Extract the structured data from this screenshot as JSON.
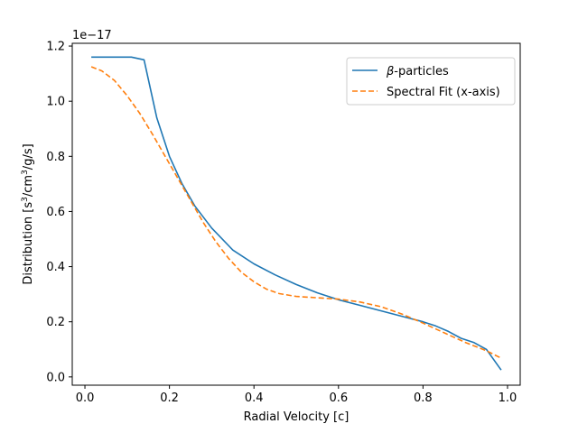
{
  "chart_data": {
    "type": "line",
    "xlabel": "Radial Velocity [c]",
    "ylabel_parts": [
      "Distribution [s",
      "3",
      "/cm",
      "3",
      "/g/s]"
    ],
    "offset_text": "1e−17",
    "xlim": [
      -0.03,
      1.03
    ],
    "ylim": [
      -0.03,
      1.21
    ],
    "xticks": [
      0.0,
      0.2,
      0.4,
      0.6,
      0.8,
      1.0
    ],
    "xtick_labels": [
      "0.0",
      "0.2",
      "0.4",
      "0.6",
      "0.8",
      "1.0"
    ],
    "yticks": [
      0.0,
      0.2,
      0.4,
      0.6,
      0.8,
      1.0,
      1.2
    ],
    "ytick_labels": [
      "0.0",
      "0.2",
      "0.4",
      "0.6",
      "0.8",
      "1.0",
      "1.2"
    ],
    "legend_position": "upper right",
    "series": [
      {
        "name_parts": [
          "β",
          "-particles"
        ],
        "color": "#1f77b4",
        "style": "solid",
        "x": [
          0.015,
          0.04,
          0.08,
          0.11,
          0.14,
          0.17,
          0.2,
          0.23,
          0.26,
          0.3,
          0.35,
          0.4,
          0.45,
          0.5,
          0.55,
          0.6,
          0.65,
          0.7,
          0.75,
          0.8,
          0.83,
          0.86,
          0.89,
          0.92,
          0.95,
          0.985
        ],
        "y": [
          1.16,
          1.16,
          1.16,
          1.16,
          1.15,
          0.94,
          0.8,
          0.7,
          0.62,
          0.54,
          0.46,
          0.41,
          0.37,
          0.335,
          0.305,
          0.28,
          0.26,
          0.24,
          0.22,
          0.2,
          0.185,
          0.165,
          0.14,
          0.125,
          0.1,
          0.025
        ]
      },
      {
        "name_parts": [
          "Spectral Fit (x-axis)"
        ],
        "color": "#ff7f0e",
        "style": "dashed",
        "x": [
          0.015,
          0.04,
          0.07,
          0.1,
          0.13,
          0.16,
          0.19,
          0.22,
          0.25,
          0.28,
          0.31,
          0.34,
          0.37,
          0.4,
          0.43,
          0.46,
          0.5,
          0.55,
          0.6,
          0.65,
          0.7,
          0.75,
          0.8,
          0.85,
          0.9,
          0.95,
          0.985
        ],
        "y": [
          1.125,
          1.11,
          1.075,
          1.02,
          0.955,
          0.88,
          0.8,
          0.72,
          0.64,
          0.56,
          0.49,
          0.43,
          0.38,
          0.345,
          0.318,
          0.302,
          0.292,
          0.287,
          0.282,
          0.272,
          0.255,
          0.228,
          0.195,
          0.16,
          0.125,
          0.095,
          0.068
        ]
      }
    ]
  }
}
